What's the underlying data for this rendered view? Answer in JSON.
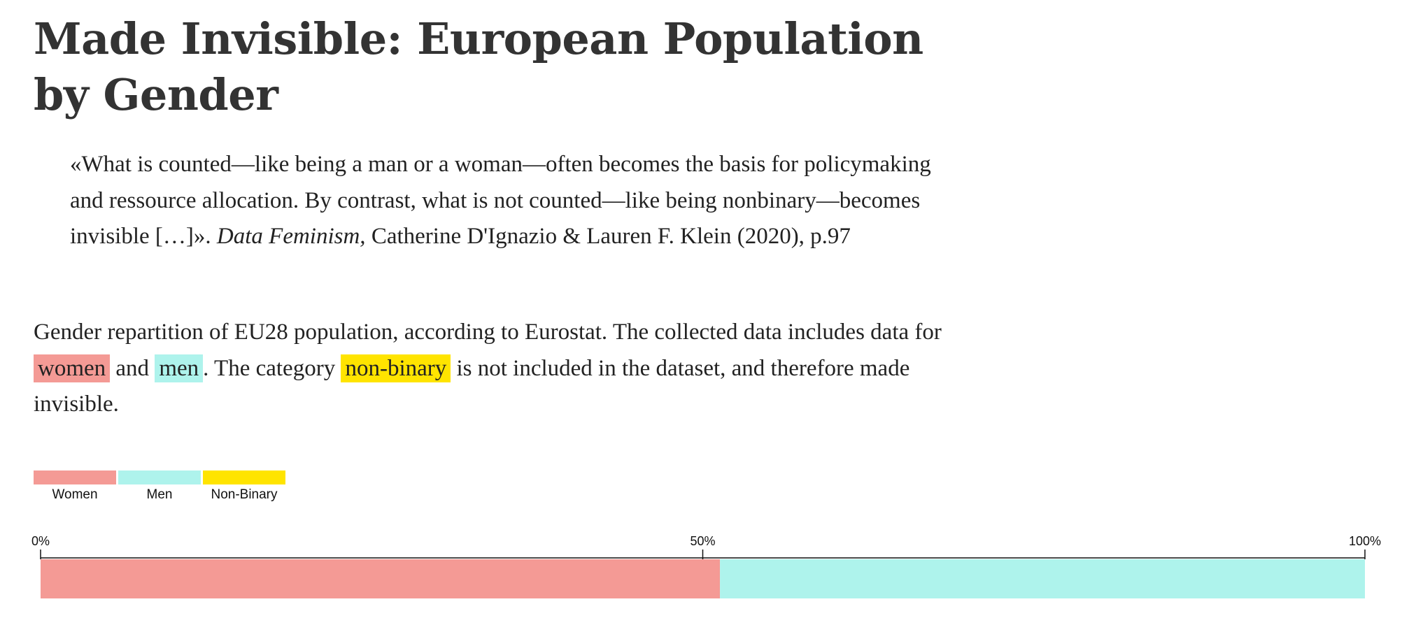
{
  "header": {
    "title": "Made Invisible: European Population by Gender"
  },
  "quote": {
    "text_start": "«What is counted—like being a man or a woman—often becomes the basis for policymaking and ressource allocation. By contrast, what is not counted—like being nonbinary—becomes invisible […]». ",
    "book": "Data Feminism,",
    "text_end": " Catherine D'Ignazio & Lauren F. Klein (2020), p.97"
  },
  "description": {
    "part1": "Gender repartition of EU28 population, according to Eurostat. The collected data includes data for ",
    "women": "women",
    "part2": " and ",
    "men": "men",
    "part3": ". The category ",
    "nonbinary": "non-binary",
    "part4": " is not included in the dataset, and therefore made invisible."
  },
  "colors": {
    "women": "#f49a95",
    "men": "#aef3ec",
    "nonbinary": "#ffe400"
  },
  "chart_data": {
    "type": "bar",
    "orientation": "horizontal-stacked",
    "series": [
      {
        "name": "Women",
        "value": 51.3,
        "color": "#f49a95"
      },
      {
        "name": "Men",
        "value": 48.7,
        "color": "#aef3ec"
      },
      {
        "name": "Non-Binary",
        "value": 0,
        "color": "#ffe400"
      }
    ],
    "xlim": [
      0,
      100
    ],
    "ticks": [
      {
        "value": 0,
        "label": "0%"
      },
      {
        "value": 50,
        "label": "50%"
      },
      {
        "value": 100,
        "label": "100%"
      }
    ],
    "legend": {
      "placement": "top-left",
      "entries": [
        "Women",
        "Men",
        "Non-Binary"
      ]
    }
  }
}
